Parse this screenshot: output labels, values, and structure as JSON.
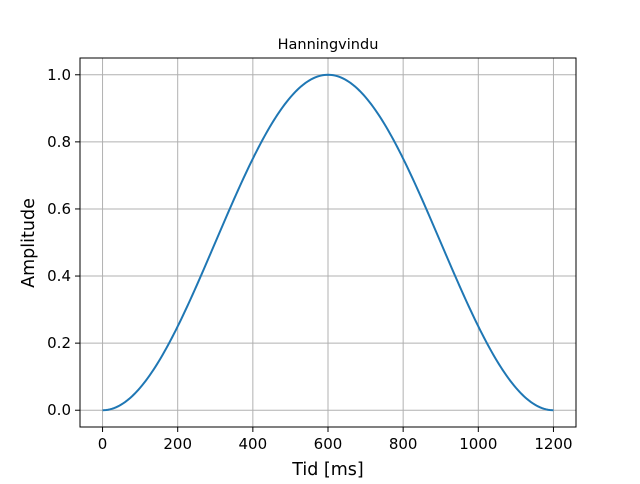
{
  "chart_data": {
    "type": "line",
    "title": "Hanningvindu",
    "xlabel": "Tid [ms]",
    "ylabel": "Amplitude",
    "xlim": [
      -60,
      1260
    ],
    "ylim": [
      -0.05,
      1.05
    ],
    "xticks": [
      0,
      200,
      400,
      600,
      800,
      1000,
      1200
    ],
    "xtick_labels": [
      "0",
      "200",
      "400",
      "600",
      "800",
      "1000",
      "1200"
    ],
    "yticks": [
      0.0,
      0.2,
      0.4,
      0.6,
      0.8,
      1.0
    ],
    "ytick_labels": [
      "0.0",
      "0.2",
      "0.4",
      "0.6",
      "0.8",
      "1.0"
    ],
    "grid": true,
    "line_color": "#1f77b4",
    "series": [
      {
        "x": [
          0,
          50,
          100,
          150,
          200,
          250,
          300,
          350,
          400,
          450,
          500,
          550,
          600,
          650,
          700,
          750,
          800,
          850,
          900,
          950,
          1000,
          1050,
          1100,
          1150,
          1200
        ],
        "values": [
          0.0,
          0.017,
          0.067,
          0.146,
          0.25,
          0.371,
          0.5,
          0.629,
          0.75,
          0.854,
          0.933,
          0.983,
          1.0,
          0.983,
          0.933,
          0.854,
          0.75,
          0.629,
          0.5,
          0.371,
          0.25,
          0.146,
          0.067,
          0.017,
          0.0
        ]
      }
    ]
  }
}
